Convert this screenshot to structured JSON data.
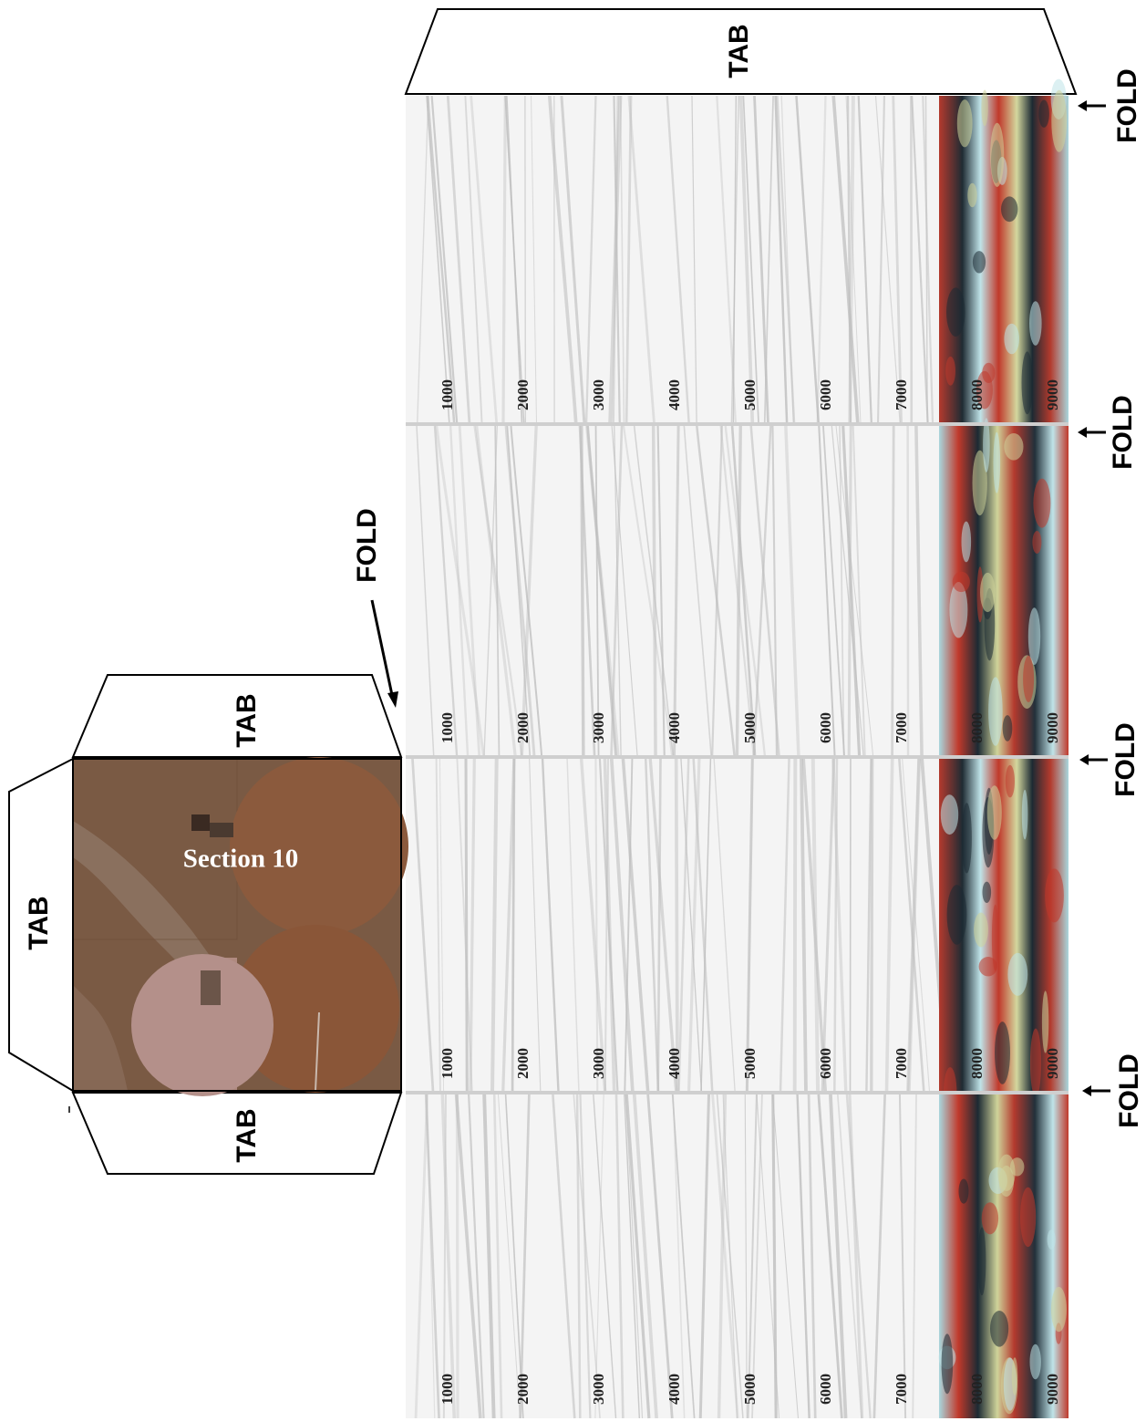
{
  "diagram": {
    "tab_label": "TAB",
    "fold_label": "FOLD",
    "map_label": "Section 10",
    "depth_labels": [
      "1000",
      "2000",
      "3000",
      "4000",
      "5000",
      "6000",
      "7000",
      "8000",
      "9000"
    ],
    "colors": {
      "outline": "#000000",
      "seismic_base": "#f4f4f4",
      "seismic_stripe": "#bdbdbd",
      "amplitude_red": "#c0392b",
      "amplitude_dark": "#1c2a33",
      "amplitude_cyan": "#bfe3e8",
      "amplitude_yellow": "#cfd39a",
      "aerial_soil": "#7a5a44",
      "aerial_field": "#8a5a3e",
      "aerial_field_pink": "#b08a80"
    },
    "panels": [
      {
        "name": "panel-1"
      },
      {
        "name": "panel-2"
      },
      {
        "name": "panel-3"
      },
      {
        "name": "panel-4"
      }
    ]
  }
}
